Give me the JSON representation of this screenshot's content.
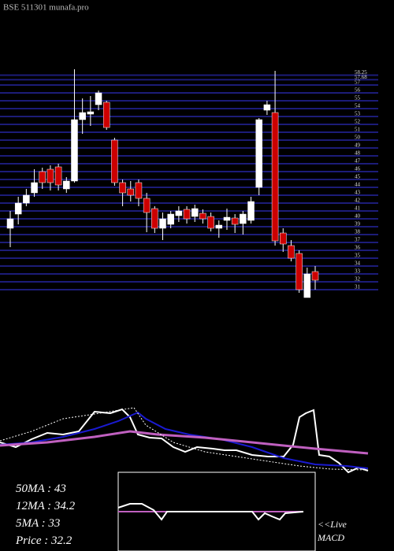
{
  "chart_data": [
    {
      "type": "candlestick",
      "title": "BSE 511301 munafa.pro",
      "open": [
        38.8,
        40.6,
        42.0,
        43.3,
        46.0,
        46.3,
        46.6,
        43.8,
        44.8,
        52.6,
        53.3,
        54.5,
        54.8,
        50.0,
        44.6,
        43.8,
        44.6,
        42.6,
        41.3,
        38.8,
        39.3,
        40.4,
        41.2,
        40.3,
        40.7,
        40.3,
        38.8,
        39.8,
        40.1,
        39.4,
        39.8,
        44.0,
        53.8,
        53.5,
        38.2,
        36.6,
        35.6,
        30.0,
        33.3
      ],
      "high": [
        41.0,
        42.8,
        43.8,
        46.3,
        46.5,
        46.8,
        47.0,
        45.3,
        59.0,
        55.3,
        55.6,
        56.3,
        55.0,
        50.3,
        45.0,
        44.8,
        45.0,
        43.3,
        41.6,
        40.8,
        41.0,
        41.6,
        41.6,
        41.8,
        41.2,
        40.8,
        39.8,
        41.3,
        40.6,
        41.0,
        42.8,
        52.8,
        55.0,
        58.8,
        38.8,
        37.3,
        36.0,
        33.8,
        34.0
      ],
      "low": [
        36.4,
        39.3,
        41.6,
        42.8,
        43.8,
        43.6,
        43.6,
        43.3,
        44.6,
        50.8,
        51.8,
        53.8,
        51.3,
        44.2,
        41.6,
        42.2,
        41.6,
        38.3,
        38.2,
        37.3,
        38.8,
        39.6,
        39.4,
        39.6,
        39.4,
        38.4,
        37.6,
        38.6,
        38.2,
        38.0,
        39.4,
        43.0,
        53.2,
        36.6,
        35.8,
        34.6,
        30.6,
        30.0,
        31.0
      ],
      "close": [
        40.0,
        42.0,
        43.0,
        44.6,
        44.6,
        44.6,
        44.3,
        44.8,
        52.6,
        53.5,
        53.6,
        56.0,
        51.6,
        44.6,
        43.3,
        43.0,
        42.6,
        40.8,
        38.8,
        40.0,
        40.6,
        41.0,
        40.0,
        41.3,
        40.0,
        38.8,
        39.2,
        40.2,
        39.3,
        40.6,
        42.2,
        52.6,
        54.5,
        37.2,
        36.8,
        35.0,
        31.0,
        33.0,
        32.2
      ],
      "up_color": "#ffffff",
      "down_color": "#cc0000",
      "grid_color": "#1c1c78",
      "ylim": [
        30,
        59
      ],
      "yticks": [
        58.25,
        57.68,
        57,
        56,
        55,
        54,
        53,
        52,
        51,
        50,
        49,
        48,
        47,
        46,
        45,
        44,
        43,
        42,
        41,
        40,
        39,
        38,
        37,
        36,
        35,
        34,
        33,
        32,
        31
      ],
      "grid": true
    },
    {
      "type": "line",
      "xlim": [
        0,
        467
      ],
      "ylim": [
        0,
        100
      ],
      "series": [
        {
          "color": "#ffffff",
          "width": 2,
          "dash": false,
          "x": [
            0,
            20,
            40,
            60,
            80,
            100,
            120,
            140,
            155,
            165,
            175,
            190,
            205,
            220,
            235,
            250,
            270,
            285,
            300,
            320,
            340,
            360,
            372,
            380,
            388,
            398,
            405,
            418,
            430,
            442,
            455,
            467
          ],
          "values": [
            43,
            37,
            47,
            55,
            53,
            57,
            82,
            80,
            85,
            75,
            53,
            49,
            48,
            37,
            31,
            37,
            35,
            33,
            33,
            27,
            25,
            25,
            40,
            75,
            80,
            84,
            27,
            25,
            17,
            5,
            11,
            7
          ]
        },
        {
          "color": "#1a1ad0",
          "width": 2,
          "dash": false,
          "x": [
            0,
            40,
            80,
            120,
            150,
            175,
            185,
            210,
            240,
            280,
            320,
            360,
            400,
            440,
            467
          ],
          "values": [
            40,
            43,
            50,
            60,
            70,
            81,
            73,
            60,
            53,
            47,
            37,
            23,
            15,
            13,
            10
          ]
        },
        {
          "color": "#c060c0",
          "width": 3,
          "dash": false,
          "x": [
            0,
            60,
            120,
            165,
            200,
            260,
            320,
            400,
            467
          ],
          "values": [
            39,
            43,
            50,
            57,
            53,
            49,
            43,
            35,
            29
          ]
        },
        {
          "color": "#ffffff",
          "width": 1,
          "dash": true,
          "x": [
            0,
            40,
            80,
            120,
            170,
            185,
            220,
            260,
            300,
            340,
            380,
            420,
            467
          ],
          "values": [
            45,
            57,
            73,
            79,
            87,
            65,
            43,
            31,
            25,
            19,
            13,
            9,
            8
          ]
        }
      ],
      "stats": [
        {
          "label": "50MA",
          "value": 43
        },
        {
          "label": "12MA",
          "value": 34.2
        },
        {
          "label": "5MA",
          "value": 33
        },
        {
          "label": "Price",
          "value": 32.2
        }
      ]
    },
    {
      "type": "line",
      "xlim": [
        150,
        400
      ],
      "ylim": [
        -50,
        50
      ],
      "series": [
        {
          "color": "#c060c0",
          "width": 2,
          "dash": false,
          "x": [
            150,
            385
          ],
          "values": [
            0,
            0
          ]
        },
        {
          "color": "#ffffff",
          "width": 2,
          "dash": false,
          "x": [
            150,
            165,
            180,
            195,
            205,
            212,
            230,
            320,
            328,
            336,
            345,
            355,
            362,
            385
          ],
          "values": [
            5,
            10,
            10,
            2,
            -10,
            0,
            0,
            0,
            -10,
            -2,
            -6,
            -10,
            -2,
            0
          ]
        }
      ],
      "annotations": [
        "<<Live",
        "MACD"
      ]
    }
  ]
}
